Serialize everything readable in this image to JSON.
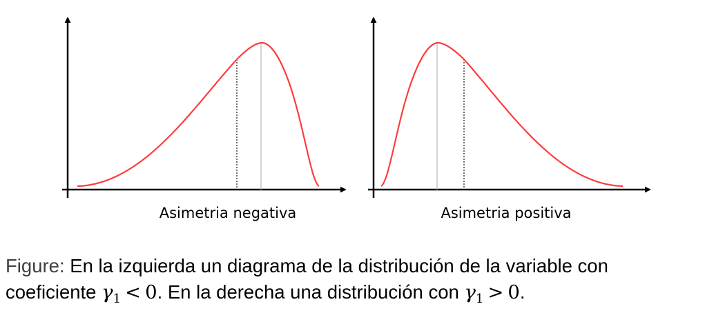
{
  "panels": [
    {
      "label": "Asimetria negativa",
      "skew": "negative"
    },
    {
      "label": "Asimetria positiva",
      "skew": "positive"
    }
  ],
  "caption": {
    "prefix": "Figure:",
    "line1_text": " En la izquierda un diagrama de la distribución de la variable con",
    "line2_start": "coeficiente ",
    "line2_middle": ". En la derecha una distribución con ",
    "line2_end": ".",
    "math_var": "γ",
    "math_sub": "1",
    "math_op1": "<",
    "math_op2": ">",
    "math_num": "0"
  },
  "colors": {
    "curve": "#ff3b3b",
    "axis": "#000000",
    "median_line": "#222222",
    "mode_line": "#bdbdbd"
  }
}
